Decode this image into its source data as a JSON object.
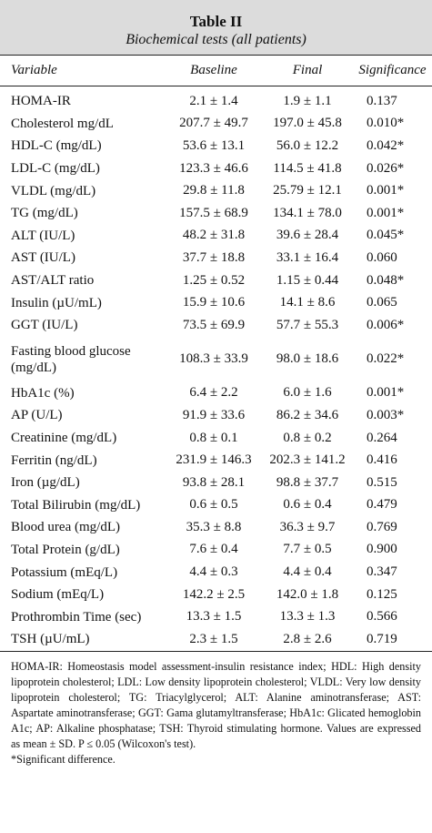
{
  "table": {
    "title": "Table II",
    "subtitle": "Biochemical tests (all patients)",
    "columns": [
      "Variable",
      "Baseline",
      "Final",
      "Significance"
    ],
    "rows": [
      {
        "variable": "HOMA-IR",
        "baseline": "2.1 ± 1.4",
        "final": "1.9 ± 1.1",
        "significance": "0.137"
      },
      {
        "variable": "Cholesterol mg/dL",
        "baseline": "207.7 ± 49.7",
        "final": "197.0 ± 45.8",
        "significance": "0.010*"
      },
      {
        "variable": "HDL-C (mg/dL)",
        "baseline": "53.6 ± 13.1",
        "final": "56.0 ± 12.2",
        "significance": "0.042*"
      },
      {
        "variable": "LDL-C (mg/dL)",
        "baseline": "123.3 ± 46.6",
        "final": "114.5 ± 41.8",
        "significance": "0.026*"
      },
      {
        "variable": "VLDL (mg/dL)",
        "baseline": "29.8 ± 11.8",
        "final": "25.79 ± 12.1",
        "significance": "0.001*"
      },
      {
        "variable": "TG (mg/dL)",
        "baseline": "157.5 ± 68.9",
        "final": "134.1 ± 78.0",
        "significance": "0.001*"
      },
      {
        "variable": "ALT (IU/L)",
        "baseline": "48.2 ± 31.8",
        "final": "39.6 ± 28.4",
        "significance": "0.045*"
      },
      {
        "variable": "AST (IU/L)",
        "baseline": "37.7 ± 18.8",
        "final": "33.1 ± 16.4",
        "significance": "0.060"
      },
      {
        "variable": "AST/ALT ratio",
        "baseline": "1.25 ± 0.52",
        "final": "1.15 ± 0.44",
        "significance": "0.048*"
      },
      {
        "variable": "Insulin (µU/mL)",
        "baseline": "15.9 ± 10.6",
        "final": "14.1 ± 8.6",
        "significance": "0.065"
      },
      {
        "variable": "GGT (IU/L)",
        "baseline": "73.5 ± 69.9",
        "final": "57.7 ± 55.3",
        "significance": "0.006*"
      },
      {
        "variable": "Fasting blood glucose (mg/dL)",
        "baseline": "108.3 ± 33.9",
        "final": "98.0 ± 18.6",
        "significance": "0.022*"
      },
      {
        "variable": "HbA1c (%)",
        "baseline": "6.4 ± 2.2",
        "final": "6.0 ± 1.6",
        "significance": "0.001*"
      },
      {
        "variable": "AP (U/L)",
        "baseline": "91.9 ± 33.6",
        "final": "86.2 ± 34.6",
        "significance": "0.003*"
      },
      {
        "variable": "Creatinine (mg/dL)",
        "baseline": "0.8 ± 0.1",
        "final": "0.8 ± 0.2",
        "significance": "0.264"
      },
      {
        "variable": "Ferritin (ng/dL)",
        "baseline": "231.9 ± 146.3",
        "final": "202.3 ± 141.2",
        "significance": "0.416"
      },
      {
        "variable": "Iron (µg/dL)",
        "baseline": "93.8 ± 28.1",
        "final": "98.8 ± 37.7",
        "significance": "0.515"
      },
      {
        "variable": "Total Bilirubin (mg/dL)",
        "baseline": "0.6 ± 0.5",
        "final": "0.6 ± 0.4",
        "significance": "0.479"
      },
      {
        "variable": "Blood urea (mg/dL)",
        "baseline": "35.3 ± 8.8",
        "final": "36.3 ± 9.7",
        "significance": "0.769"
      },
      {
        "variable": "Total Protein (g/dL)",
        "baseline": "7.6 ± 0.4",
        "final": "7.7 ± 0.5",
        "significance": "0.900"
      },
      {
        "variable": "Potassium (mEq/L)",
        "baseline": "4.4 ± 0.3",
        "final": "4.4 ± 0.4",
        "significance": "0.347"
      },
      {
        "variable": "Sodium (mEq/L)",
        "baseline": "142.2 ± 2.5",
        "final": "142.0 ± 1.8",
        "significance": "0.125"
      },
      {
        "variable": "Prothrombin Time (sec)",
        "baseline": "13.3 ± 1.5",
        "final": "13.3 ± 1.3",
        "significance": "0.566"
      },
      {
        "variable": "TSH (µU/mL)",
        "baseline": "2.3 ± 1.5",
        "final": "2.8 ± 2.6",
        "significance": "0.719"
      }
    ],
    "footnotes": [
      "HOMA-IR: Homeostasis model assessment-insulin resistance index; HDL: High density lipoprotein cholesterol; LDL: Low density lipoprotein cholesterol; VLDL: Very low density lipoprotein cholesterol; TG: Triacylglycerol; ALT: Alanine aminotransferase; AST: Aspartate aminotransferase; GGT: Gama glutamyltransferase; HbA1c: Glicated hemoglobin A1c; AP: Alkaline phosphatase; TSH: Thyroid stimulating hormone. Values are expressed as mean ± SD. P ≤ 0.05 (Wilcoxon's test).",
      "*Significant difference."
    ],
    "colors": {
      "header_bg": "#dcdcdc",
      "rule": "#222222"
    }
  }
}
